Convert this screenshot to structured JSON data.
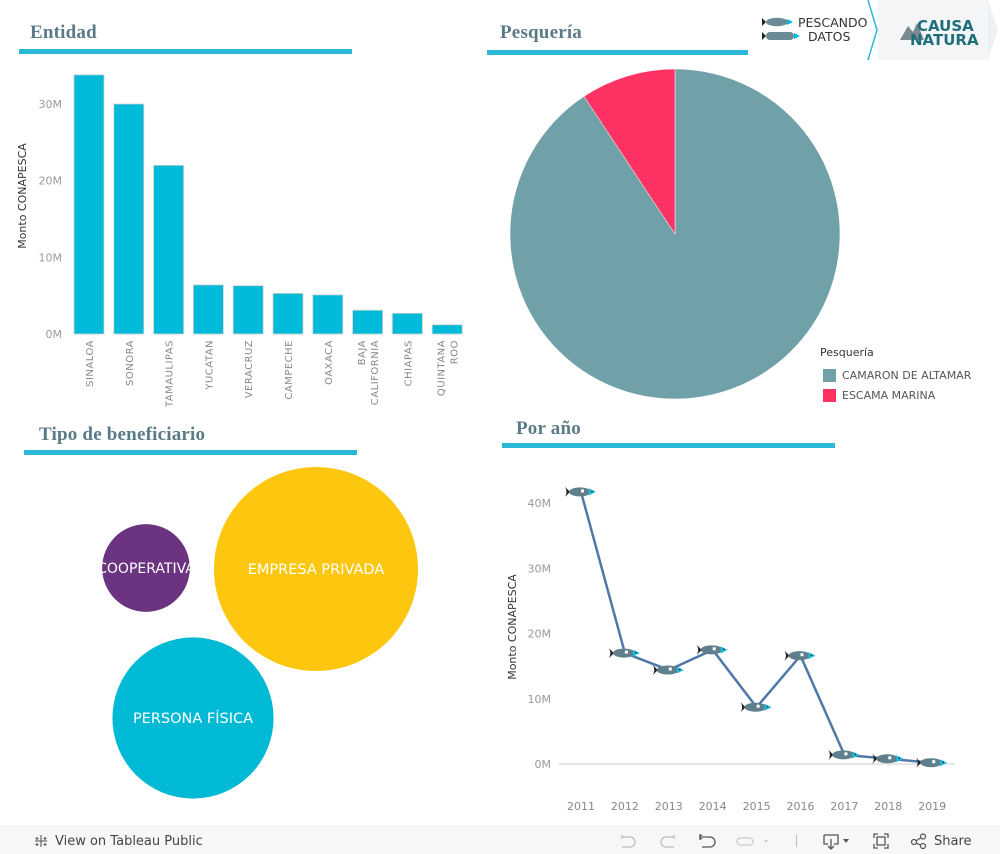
{
  "branding": {
    "pescando_datos_line1": "PESCANDO",
    "pescando_datos_line2": "DATOS",
    "causa_natura_line1": "CAUSA",
    "causa_natura_line2": "NATURA"
  },
  "panels": {
    "entidad": {
      "title": "Entidad"
    },
    "pesqueria": {
      "title": "Pesquería"
    },
    "tipo_beneficiario": {
      "title": "Tipo  de  beneficiario"
    },
    "por_anio": {
      "title": "Por  año"
    }
  },
  "chart_data": [
    {
      "id": "entidad",
      "type": "bar",
      "title": "Entidad",
      "xlabel": "",
      "ylabel": "Monto CONAPESCA",
      "categories": [
        "SINALOA",
        "SONORA",
        "TAMAULIPAS",
        "YUCATAN",
        "VERACRUZ",
        "CAMPECHE",
        "OAXACA",
        "BAJA CALIFORNIA",
        "CHIAPAS",
        "QUINTANA ROO"
      ],
      "category_lines": [
        [
          "SINALOA"
        ],
        [
          "SONORA"
        ],
        [
          "TAMAULIPAS"
        ],
        [
          "YUCATAN"
        ],
        [
          "VERACRUZ"
        ],
        [
          "CAMPECHE"
        ],
        [
          "OAXACA"
        ],
        [
          "BAJA",
          "CALIFORNIA"
        ],
        [
          "CHIAPAS"
        ],
        [
          "QUINTANA",
          "ROO"
        ]
      ],
      "values": [
        33.8,
        30.0,
        22.0,
        6.4,
        6.3,
        5.3,
        5.1,
        3.1,
        2.7,
        1.2
      ],
      "units": "M",
      "ylim": [
        0,
        34
      ],
      "yticks": [
        0,
        10,
        20,
        30
      ],
      "ytick_labels": [
        "0M",
        "10M",
        "20M",
        "30M"
      ],
      "color": "#00bad9",
      "grid": false
    },
    {
      "id": "pesqueria",
      "type": "pie",
      "title": "Pesquería",
      "legend_title": "Pesquería",
      "legend_position": "bottom-right",
      "slices": [
        {
          "label": "CAMARON DE ALTAMAR",
          "value": 90.7,
          "color": "#71a1a8"
        },
        {
          "label": "ESCAMA MARINA",
          "value": 9.3,
          "color": "#ff3363"
        }
      ]
    },
    {
      "id": "tipo_beneficiario",
      "type": "bubble",
      "title": "Tipo de beneficiario",
      "bubbles": [
        {
          "label": "COOPERATIVA",
          "relative_size": 0.43,
          "color": "#6c3380"
        },
        {
          "label": "EMPRESA PRIVADA",
          "relative_size": 1.0,
          "color": "#fec70f"
        },
        {
          "label": "PERSONA FÍSICA",
          "relative_size": 0.79,
          "color": "#00bad5"
        }
      ]
    },
    {
      "id": "por_anio",
      "type": "line",
      "title": "Por año",
      "xlabel": "",
      "ylabel": "Monto CONAPESCA",
      "x": [
        "2011",
        "2012",
        "2013",
        "2014",
        "2015",
        "2016",
        "2017",
        "2018",
        "2019"
      ],
      "values": [
        41.7,
        17.0,
        14.4,
        17.5,
        8.7,
        16.6,
        1.4,
        0.8,
        0.2
      ],
      "units": "M",
      "ylim": [
        -5,
        44
      ],
      "yticks": [
        0,
        10,
        20,
        30,
        40
      ],
      "ytick_labels": [
        "0M",
        "10M",
        "20M",
        "30M",
        "40M"
      ],
      "line_color": "#4e79a7",
      "marker": "fish",
      "grid": false
    }
  ],
  "toolbar": {
    "view_on_tableau_label": "View on Tableau Public",
    "share_label": "Share",
    "undo_icon": "undo-icon",
    "redo_icon": "redo-icon",
    "revert_icon": "revert-icon",
    "refresh_icon": "refresh-icon",
    "download_icon": "download-icon",
    "fullscreen_icon": "fullscreen-icon",
    "share_icon": "share-icon"
  }
}
